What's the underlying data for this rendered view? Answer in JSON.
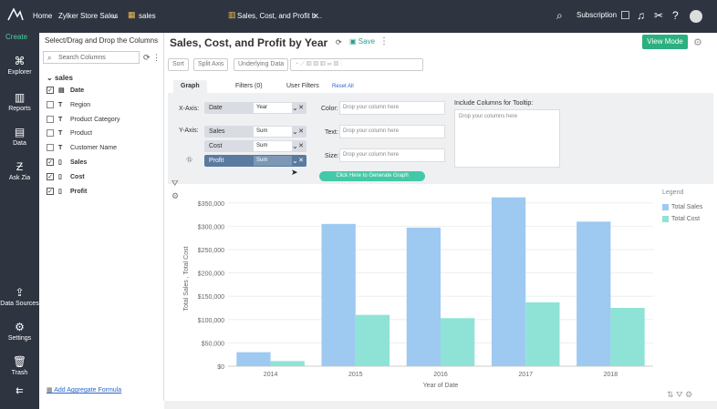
{
  "topbar": {
    "home": "Home",
    "workspace": "Zylker Store Sales",
    "table_tab": "sales",
    "report_tab": "Sales, Cost, and Profit b...",
    "subscription": "Subscription"
  },
  "leftnav": {
    "create": "Create",
    "items": [
      "Explorer",
      "Reports",
      "Data",
      "Ask Zia",
      "Data Sources",
      "Settings",
      "Trash"
    ]
  },
  "panel": {
    "header": "Select/Drag and Drop the Columns",
    "search_placeholder": "Search Columns",
    "table": "sales",
    "columns": [
      {
        "name": "Date",
        "checked": true,
        "type": "cal"
      },
      {
        "name": "Region",
        "checked": false,
        "type": "T"
      },
      {
        "name": "Product Category",
        "checked": false,
        "type": "T"
      },
      {
        "name": "Product",
        "checked": false,
        "type": "T"
      },
      {
        "name": "Customer Name",
        "checked": false,
        "type": "T"
      },
      {
        "name": "Sales",
        "checked": true,
        "type": "num"
      },
      {
        "name": "Cost",
        "checked": true,
        "type": "num"
      },
      {
        "name": "Profit",
        "checked": true,
        "type": "num"
      }
    ],
    "footer": "Add Aggregate Formula"
  },
  "main": {
    "title": "Sales, Cost, and Profit by Year",
    "save": "Save",
    "view_mode": "View Mode",
    "toolbar": [
      "Sort",
      "Split Axis",
      "Underlying Data"
    ],
    "tabs": [
      "Graph",
      "Filters (0)",
      "User Filters"
    ],
    "reset_all": "Reset All",
    "xaxis_label": "X-Axis:",
    "yaxis_label": "Y-Axis:",
    "x_field": {
      "name": "Date",
      "agg": "Year"
    },
    "y_fields": [
      {
        "name": "Sales",
        "agg": "Sum"
      },
      {
        "name": "Cost",
        "agg": "Sum"
      },
      {
        "name": "Profit",
        "agg": "Sum"
      }
    ],
    "color_label": "Color:",
    "text_label": "Text:",
    "size_label": "Size:",
    "drop_placeholder": "Drop your column here",
    "tooltip_label": "Include Columns for Tooltip:",
    "tooltip_placeholder": "Drop your columns here",
    "generate": "Click Here to Generate Graph"
  },
  "chart_data": {
    "type": "bar",
    "categories": [
      "2014",
      "2015",
      "2016",
      "2017",
      "2018"
    ],
    "series": [
      {
        "name": "Total Sales",
        "color": "#9ec9f0",
        "values": [
          30000,
          305000,
          297000,
          362000,
          310000
        ]
      },
      {
        "name": "Total Cost",
        "color": "#8ee3d6",
        "values": [
          11000,
          110000,
          103000,
          137000,
          125000
        ]
      }
    ],
    "xlabel": "Year of Date",
    "ylabel": "Total Sales , Total Cost",
    "yticks": [
      "$0",
      "$50,000",
      "$100,000",
      "$150,000",
      "$200,000",
      "$250,000",
      "$300,000",
      "$350,000"
    ],
    "ylim": [
      0,
      375000
    ],
    "legend_title": "Legend",
    "legend_position": "top-right",
    "grid": true
  }
}
